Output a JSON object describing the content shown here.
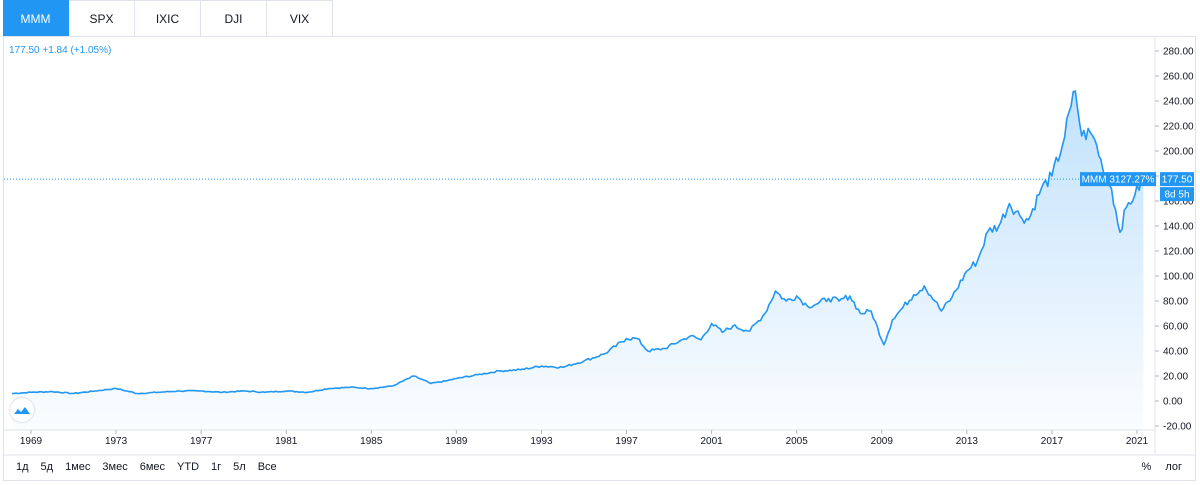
{
  "tabs": [
    {
      "label": "MMM",
      "active": true
    },
    {
      "label": "SPX",
      "active": false
    },
    {
      "label": "IXIC",
      "active": false
    },
    {
      "label": "DJI",
      "active": false
    },
    {
      "label": "VIX",
      "active": false
    }
  ],
  "legend": {
    "price": "177.50",
    "change": "+1.84",
    "change_pct": "(+1.05%)"
  },
  "price_label": {
    "symbol_tag": "MMM 3127.27%",
    "price": "177.50",
    "countdown": "8d 5h"
  },
  "ranges": [
    "1д",
    "5д",
    "1мес",
    "3мес",
    "6мес",
    "YTD",
    "1г",
    "5л",
    "Все"
  ],
  "toggles": {
    "percent": "%",
    "log": "лог"
  },
  "colors": {
    "line": "#2196f3",
    "fill": "#2196f3",
    "label_bg": "#2196f3",
    "axis_text": "#131722"
  },
  "icons": {
    "logo": "tradingview-cloud-icon"
  },
  "chart_data": {
    "type": "area",
    "title": "",
    "xlabel": "",
    "ylabel": "",
    "ylim": [
      -20,
      290
    ],
    "xlim": [
      1968,
      2022.2
    ],
    "y_ticks": [
      "280.00",
      "260.00",
      "240.00",
      "220.00",
      "200.00",
      "180.00",
      "160.00",
      "140.00",
      "120.00",
      "100.00",
      "80.00",
      "60.00",
      "40.00",
      "20.00",
      "0.00",
      "-20.00"
    ],
    "x_ticks": [
      "1969",
      "1973",
      "1977",
      "1981",
      "1985",
      "1989",
      "1993",
      "1997",
      "2001",
      "2005",
      "2009",
      "2013",
      "2017",
      "2021"
    ],
    "last_value": 177.5,
    "series": [
      {
        "x": [
          1968.1,
          1969,
          1970,
          1971,
          1972,
          1973,
          1974,
          1975,
          1976,
          1977,
          1978,
          1979,
          1980,
          1981,
          1982,
          1983,
          1984,
          1985,
          1986,
          1987,
          1987.8,
          1988.5,
          1989,
          1990,
          1991,
          1992,
          1993,
          1994,
          1995,
          1996,
          1997,
          1997.5,
          1998,
          1998.8,
          1999.5,
          2000,
          2000.5,
          2001,
          2001.5,
          2002,
          2002.8,
          2003.5,
          2004,
          2004.5,
          2005,
          2005.5,
          2006,
          2006.5,
          2007,
          2007.5,
          2008,
          2008.5,
          2009.1,
          2009.5,
          2010,
          2010.5,
          2011,
          2011.5,
          2011.8,
          2012.3,
          2013,
          2013.5,
          2014,
          2014.5,
          2015,
          2015.5,
          2015.9,
          2016.5,
          2017,
          2017.5,
          2017.9,
          2018.1,
          2018.4,
          2018.8,
          2019.1,
          2019.4,
          2019.8,
          2020.2,
          2020.5,
          2020.9,
          2021.3
        ],
        "y": [
          6,
          7,
          7.5,
          6,
          8,
          10,
          6,
          7,
          8,
          8,
          7,
          8,
          7,
          8,
          7,
          10,
          11,
          10,
          12,
          20,
          14,
          16,
          18,
          21,
          24,
          25,
          28,
          27,
          32,
          38,
          50,
          50,
          40,
          42,
          48,
          52,
          49,
          62,
          55,
          60,
          56,
          70,
          88,
          80,
          84,
          76,
          78,
          82,
          80,
          84,
          70,
          72,
          45,
          65,
          75,
          85,
          92,
          80,
          72,
          83,
          104,
          112,
          136,
          140,
          158,
          148,
          145,
          170,
          180,
          205,
          236,
          248,
          212,
          215,
          205,
          185,
          170,
          135,
          155,
          165,
          177.5
        ]
      }
    ]
  }
}
